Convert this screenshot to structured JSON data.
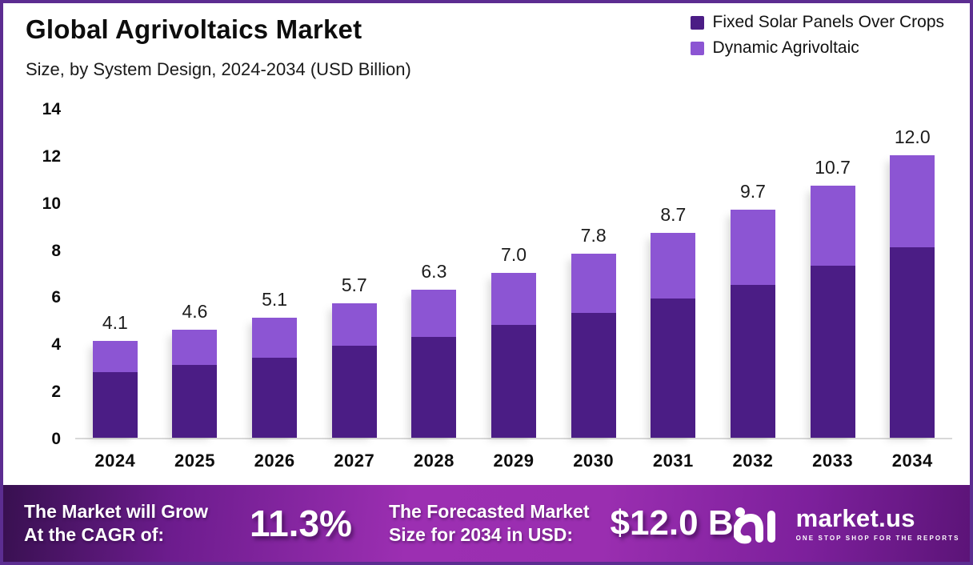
{
  "page": {
    "border_color": "#5c2d91",
    "background": "#ffffff"
  },
  "header": {
    "title": "Global Agrivoltaics Market",
    "subtitle": "Size, by System Design, 2024-2034 (USD Billion)"
  },
  "legend": {
    "items": [
      {
        "label": "Fixed Solar Panels Over Crops",
        "color": "#4b1d85"
      },
      {
        "label": "Dynamic Agrivoltaic",
        "color": "#8c55d3"
      }
    ]
  },
  "chart_data": {
    "type": "bar",
    "stacked": true,
    "title": "Global Agrivoltaics Market Size, by System Design, 2024-2034 (USD Billion)",
    "categories": [
      "2024",
      "2025",
      "2026",
      "2027",
      "2028",
      "2029",
      "2030",
      "2031",
      "2032",
      "2033",
      "2034"
    ],
    "series": [
      {
        "name": "Fixed Solar Panels Over Crops",
        "color": "#4b1d85",
        "values": [
          2.8,
          3.1,
          3.4,
          3.9,
          4.3,
          4.8,
          5.3,
          5.9,
          6.5,
          7.3,
          8.1
        ]
      },
      {
        "name": "Dynamic Agrivoltaic",
        "color": "#8c55d3",
        "values": [
          1.3,
          1.5,
          1.7,
          1.8,
          2.0,
          2.2,
          2.5,
          2.8,
          3.2,
          3.4,
          3.9
        ]
      }
    ],
    "totals": [
      4.1,
      4.6,
      5.1,
      5.7,
      6.3,
      7.0,
      7.8,
      8.7,
      9.7,
      10.7,
      12.0
    ],
    "total_labels": [
      "4.1",
      "4.6",
      "5.1",
      "5.7",
      "6.3",
      "7.0",
      "7.8",
      "8.7",
      "9.7",
      "10.7",
      "12.0"
    ],
    "xlabel": "",
    "ylabel": "",
    "ylim": [
      0,
      14
    ],
    "yticks": [
      "0",
      "2",
      "4",
      "6",
      "8",
      "10",
      "12",
      "14"
    ],
    "grid": false,
    "legend_position": "top-right",
    "axis_line_color": "#d8d8d8"
  },
  "footer": {
    "cagr_caption_line1": "The Market will Grow",
    "cagr_caption_line2": "At the CAGR of:",
    "cagr_value": "11.3%",
    "forecast_caption_line1": "The Forecasted Market",
    "forecast_caption_line2": "Size for 2034 in USD:",
    "forecast_value": "$12.0 B",
    "brand_name": "market.us",
    "brand_tagline": "ONE STOP SHOP FOR THE REPORTS"
  }
}
